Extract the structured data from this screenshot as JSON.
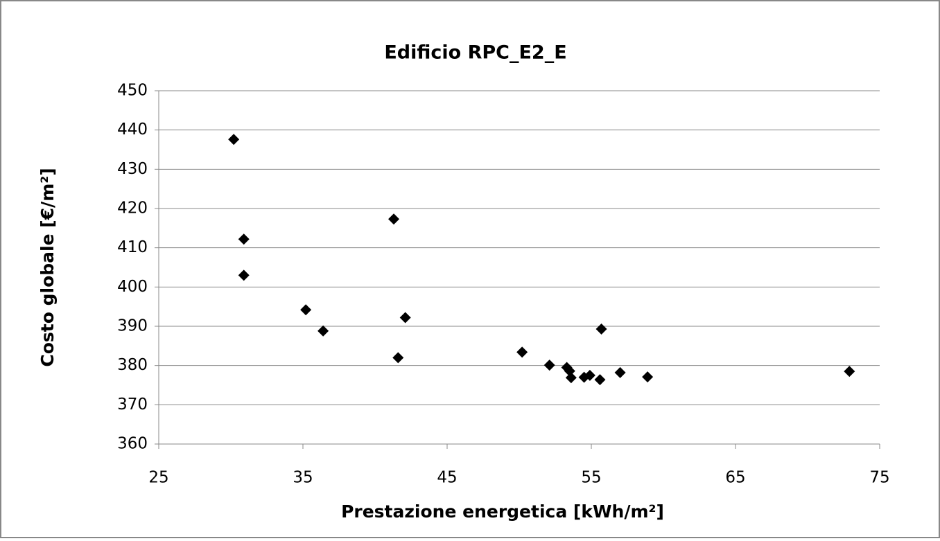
{
  "chart_data": {
    "type": "scatter",
    "title": "Edificio RPC_E2_E",
    "x_label": "Prestazione energetica [kWh/m²]",
    "y_label": "Costo globale [€/m²]",
    "color": "#000000",
    "grid": true,
    "x": [
      30.2,
      30.9,
      30.9,
      35.2,
      36.4,
      41.3,
      41.6,
      42.1,
      50.2,
      52.1,
      53.3,
      53.6,
      53.5,
      54.5,
      54.9,
      55.6,
      55.7,
      57.0,
      58.9,
      72.9
    ],
    "values": [
      437.6,
      412.2,
      403.0,
      394.2,
      388.8,
      417.3,
      382.0,
      392.2,
      383.4,
      380.1,
      379.5,
      376.9,
      378.6,
      377.0,
      377.5,
      376.4,
      389.3,
      378.2,
      377.1,
      378.5
    ],
    "xlim": [
      25,
      75
    ],
    "xticks": [
      25,
      35,
      45,
      55,
      65,
      75
    ],
    "ylim": [
      360,
      450
    ],
    "yticks": [
      360,
      370,
      380,
      390,
      400,
      410,
      420,
      430,
      440,
      450
    ]
  }
}
